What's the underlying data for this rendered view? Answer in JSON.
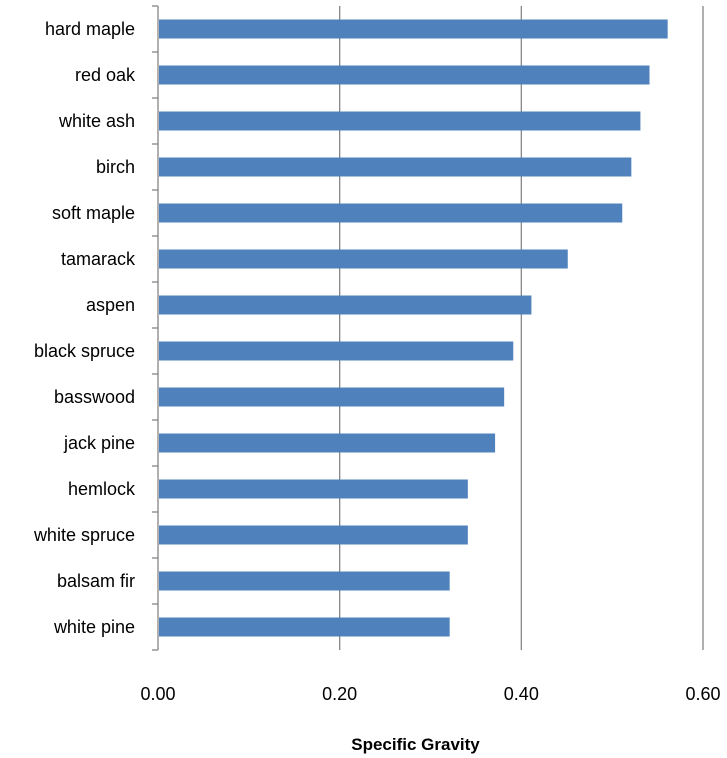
{
  "chart_data": {
    "type": "bar",
    "orientation": "horizontal",
    "categories": [
      "hard maple",
      "red oak",
      "white ash",
      "birch",
      "soft maple",
      "tamarack",
      "aspen",
      "black spruce",
      "basswood",
      "jack pine",
      "hemlock",
      "white spruce",
      "balsam fir",
      "white pine"
    ],
    "values": [
      0.56,
      0.54,
      0.53,
      0.52,
      0.51,
      0.45,
      0.41,
      0.39,
      0.38,
      0.37,
      0.34,
      0.34,
      0.32,
      0.32
    ],
    "xlabel": "Specific Gravity",
    "ylabel": "",
    "xlim": [
      0,
      0.6
    ],
    "x_ticks": [
      "0.00",
      "0.20",
      "0.40",
      "0.60"
    ],
    "grid": "vertical gridlines",
    "legend": "none",
    "colors": {
      "bar": "#4f81bd",
      "grid": "#868686",
      "axis": "#868686"
    }
  }
}
